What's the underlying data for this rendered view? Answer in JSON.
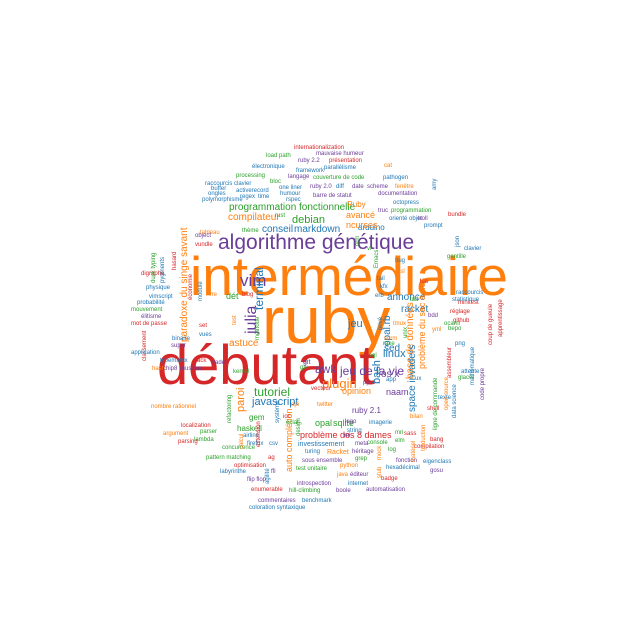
{
  "palette": {
    "orange": "#ff7f0e",
    "red": "#d62728",
    "purple": "#6b3d9a",
    "blue": "#1f77b4",
    "green": "#2ca02c"
  },
  "words": [
    {
      "text": "intermédiaire",
      "color": "#ff7f0e"
    },
    {
      "text": "ruby",
      "color": "#ff7f0e"
    },
    {
      "text": "débutant",
      "color": "#d62728"
    },
    {
      "text": "algorithme génétique",
      "color": "#6b3d9a"
    },
    {
      "text": "vim",
      "color": "#6b3d9a"
    },
    {
      "text": "julia",
      "color": "#6b3d9a"
    },
    {
      "text": "terminal",
      "color": "#1f77b4"
    },
    {
      "text": "programmation fonctionnelle",
      "color": "#2ca02c"
    },
    {
      "text": "compilateur",
      "color": "#ff7f0e"
    },
    {
      "text": "debian",
      "color": "#2ca02c"
    },
    {
      "text": "conseil",
      "color": "#1f77b4"
    },
    {
      "text": "markdown",
      "color": "#1f77b4"
    },
    {
      "text": "arduino",
      "color": "#1f77b4"
    },
    {
      "text": "ncurses",
      "color": "#ff7f0e"
    },
    {
      "text": "avancé",
      "color": "#ff7f0e"
    },
    {
      "text": "Ruby",
      "color": "#ff7f0e"
    },
    {
      "text": "paradoxe du singe savant",
      "color": "#ff7f0e"
    },
    {
      "text": "tutoriel",
      "color": "#2ca02c"
    },
    {
      "text": "javascript",
      "color": "#1f77b4"
    },
    {
      "text": "plugin",
      "color": "#ff7f0e"
    },
    {
      "text": "awk",
      "color": "#6b3d9a"
    },
    {
      "text": "jeu de la vie",
      "color": "#6b3d9a"
    },
    {
      "text": "linux",
      "color": "#1f77b4"
    },
    {
      "text": "annonce",
      "color": "#1f77b4"
    },
    {
      "text": "racket",
      "color": "#1f77b4"
    },
    {
      "text": "jeu",
      "color": "#1f77b4"
    },
    {
      "text": "opal.rb",
      "color": "#1f77b4"
    },
    {
      "text": "problème du sac à dos",
      "color": "#ff7f0e"
    },
    {
      "text": "base de données",
      "color": "#ff7f0e"
    },
    {
      "text": "bash",
      "color": "#1f77b4"
    },
    {
      "text": "sed",
      "color": "#1f77b4"
    },
    {
      "text": "os x",
      "color": "#6b3d9a"
    },
    {
      "text": "space invaders",
      "color": "#1f77b4"
    },
    {
      "text": "naam",
      "color": "#6b3d9a"
    },
    {
      "text": "ruby 2.1",
      "color": "#6b3d9a"
    },
    {
      "text": "problème des 8 dames",
      "color": "#d62728"
    },
    {
      "text": "opal",
      "color": "#2ca02c"
    },
    {
      "text": "sqlite",
      "color": "#2ca02c"
    },
    {
      "text": "opinion",
      "color": "#ff7f0e"
    },
    {
      "text": "auto complétion",
      "color": "#ff7f0e"
    },
    {
      "text": "paroi",
      "color": "#ff7f0e"
    },
    {
      "text": "gem",
      "color": "#2ca02c"
    },
    {
      "text": "haskell",
      "color": "#2ca02c"
    },
    {
      "text": "astuce",
      "color": "#ff7f0e"
    },
    {
      "text": "dét",
      "color": "#2ca02c"
    },
    {
      "text": "internationalization",
      "color": "#d62728"
    },
    {
      "text": "mauvaise humeur",
      "color": "#6b3d9a"
    },
    {
      "text": "load path",
      "color": "#2ca02c"
    },
    {
      "text": "ruby 2.2",
      "color": "#6b3d9a"
    },
    {
      "text": "présentation",
      "color": "#d62728"
    },
    {
      "text": "électronique",
      "color": "#1f77b4"
    },
    {
      "text": "framework",
      "color": "#1f77b4"
    },
    {
      "text": "processing",
      "color": "#2ca02c"
    },
    {
      "text": "couverture de code",
      "color": "#2ca02c"
    },
    {
      "text": "parallélisme",
      "color": "#1f77b4"
    },
    {
      "text": "pathogen",
      "color": "#1f77b4"
    },
    {
      "text": "raccourcis clavier",
      "color": "#1f77b4"
    },
    {
      "text": "langage",
      "color": "#6b3d9a"
    },
    {
      "text": "ruby 2.0",
      "color": "#6b3d9a"
    },
    {
      "text": "date",
      "color": "#6b3d9a"
    },
    {
      "text": "scheme",
      "color": "#6b3d9a"
    },
    {
      "text": "fenêtre",
      "color": "#ff7f0e"
    },
    {
      "text": "polymorphisme",
      "color": "#1f77b4"
    },
    {
      "text": "one liner",
      "color": "#1f77b4"
    },
    {
      "text": "humour",
      "color": "#1f77b4"
    },
    {
      "text": "activerecord",
      "color": "#1f77b4"
    },
    {
      "text": "barre de statut",
      "color": "#6b3d9a"
    },
    {
      "text": "documentation",
      "color": "#6b3d9a"
    },
    {
      "text": "octopress",
      "color": "#1f77b4"
    },
    {
      "text": "orienté objet",
      "color": "#1f77b4"
    },
    {
      "text": "programmation",
      "color": "#2ca02c"
    },
    {
      "text": "prompt",
      "color": "#1f77b4"
    },
    {
      "text": "bundle",
      "color": "#d62728"
    },
    {
      "text": "clavier",
      "color": "#1f77b4"
    },
    {
      "text": "gentille",
      "color": "#2ca02c"
    },
    {
      "text": "json",
      "color": "#1f77b4"
    },
    {
      "text": "rust",
      "color": "#2ca02c"
    },
    {
      "text": "regex",
      "color": "#1f77b4"
    },
    {
      "text": "time",
      "color": "#1f77b4"
    },
    {
      "text": "thème",
      "color": "#2ca02c"
    },
    {
      "text": "duck typing",
      "color": "#2ca02c"
    },
    {
      "text": "digraphe",
      "color": "#d62728"
    },
    {
      "text": "physique",
      "color": "#1f77b4"
    },
    {
      "text": "vimscript",
      "color": "#1f77b4"
    },
    {
      "text": "probabilité",
      "color": "#1f77b4"
    },
    {
      "text": "mouvement",
      "color": "#2ca02c"
    },
    {
      "text": "élitisme",
      "color": "#6b3d9a"
    },
    {
      "text": "mot de passe",
      "color": "#d62728"
    },
    {
      "text": "hash",
      "color": "#ff7f0e"
    },
    {
      "text": "binaire",
      "color": "#1f77b4"
    },
    {
      "text": "classement",
      "color": "#d62728"
    },
    {
      "text": "application",
      "color": "#1f77b4"
    },
    {
      "text": "typematrix",
      "color": "#1f77b4"
    },
    {
      "text": "chip8",
      "color": "#6b3d9a"
    },
    {
      "text": "musique",
      "color": "#6b3d9a"
    },
    {
      "text": "nombre rationnel",
      "color": "#ff7f0e"
    },
    {
      "text": "argument",
      "color": "#ff7f0e"
    },
    {
      "text": "localization",
      "color": "#d62728"
    },
    {
      "text": "parser",
      "color": "#2ca02c"
    },
    {
      "text": "lambda",
      "color": "#2ca02c"
    },
    {
      "text": "pattern matching",
      "color": "#2ca02c"
    },
    {
      "text": "labyrinthe",
      "color": "#1f77b4"
    },
    {
      "text": "optimisation",
      "color": "#d62728"
    },
    {
      "text": "flip flop",
      "color": "#6b3d9a"
    },
    {
      "text": "enumerable",
      "color": "#d62728"
    },
    {
      "text": "concurrence",
      "color": "#2ca02c"
    },
    {
      "text": "airline",
      "color": "#1f77b4"
    },
    {
      "text": "firefox",
      "color": "#1f77b4"
    },
    {
      "text": "refactoring",
      "color": "#2ca02c"
    },
    {
      "text": "vader",
      "color": "#6b3d9a"
    },
    {
      "text": "turing",
      "color": "#1f77b4"
    },
    {
      "text": "investissement",
      "color": "#1f77b4"
    },
    {
      "text": "meta",
      "color": "#6b3d9a"
    },
    {
      "text": "test unitaire",
      "color": "#2ca02c"
    },
    {
      "text": "sous ensemble",
      "color": "#6b3d9a"
    },
    {
      "text": "introspection",
      "color": "#6b3d9a"
    },
    {
      "text": "hill-climbing",
      "color": "#2ca02c"
    },
    {
      "text": "boole",
      "color": "#6b3d9a"
    },
    {
      "text": "commentaires",
      "color": "#6b3d9a"
    },
    {
      "text": "benchmark",
      "color": "#1f77b4"
    },
    {
      "text": "coloration syntaxique",
      "color": "#1f77b4"
    },
    {
      "text": "Racket",
      "color": "#ff7f0e"
    },
    {
      "text": "héritage",
      "color": "#6b3d9a"
    },
    {
      "text": "python",
      "color": "#ff7f0e"
    },
    {
      "text": "java",
      "color": "#ff7f0e"
    },
    {
      "text": "éditeur",
      "color": "#6b3d9a"
    },
    {
      "text": "internet",
      "color": "#1f77b4"
    },
    {
      "text": "automatisation",
      "color": "#6b3d9a"
    },
    {
      "text": "badge",
      "color": "#d62728"
    },
    {
      "text": "fonction",
      "color": "#6b3d9a"
    },
    {
      "text": "hexadécimal",
      "color": "#1f77b4"
    },
    {
      "text": "compilation",
      "color": "#d62728"
    },
    {
      "text": "bang",
      "color": "#d62728"
    },
    {
      "text": "console",
      "color": "#2ca02c"
    },
    {
      "text": "grep",
      "color": "#2ca02c"
    },
    {
      "text": "logo",
      "color": "#6b3d9a"
    },
    {
      "text": "string",
      "color": "#1f77b4"
    },
    {
      "text": "imagerie",
      "color": "#1f77b4"
    },
    {
      "text": "bilan",
      "color": "#ff7f0e"
    },
    {
      "text": "sorm",
      "color": "#ff7f0e"
    },
    {
      "text": "réglage",
      "color": "#d62728"
    },
    {
      "text": "github",
      "color": "#d62728"
    },
    {
      "text": "minitest",
      "color": "#d62728"
    },
    {
      "text": "raccourcis",
      "color": "#1f77b4"
    },
    {
      "text": "statistique",
      "color": "#1f77b4"
    },
    {
      "text": "bepo",
      "color": "#2ca02c"
    },
    {
      "text": "png",
      "color": "#1f77b4"
    },
    {
      "text": "shell",
      "color": "#d62728"
    },
    {
      "text": "texte",
      "color": "#1f77b4"
    },
    {
      "text": "mathématique",
      "color": "#1f77b4"
    },
    {
      "text": "ligne de commande",
      "color": "#2ca02c"
    },
    {
      "text": "code propre",
      "color": "#6b3d9a"
    },
    {
      "text": "coup de gueule",
      "color": "#d62728"
    },
    {
      "text": "apprentissage",
      "color": "#d62728"
    },
    {
      "text": "livre",
      "color": "#ff7f0e"
    },
    {
      "text": "blog",
      "color": "#d62728"
    },
    {
      "text": "kernel",
      "color": "#2ca02c"
    },
    {
      "text": "méthode",
      "color": "#2ca02c"
    },
    {
      "text": "gtk",
      "color": "#2ca02c"
    },
    {
      "text": "erb",
      "color": "#1f77b4"
    },
    {
      "text": "tail",
      "color": "#1f77b4"
    },
    {
      "text": "rake",
      "color": "#2ca02c"
    },
    {
      "text": "truc",
      "color": "#6b3d9a"
    },
    {
      "text": "diff",
      "color": "#1f77b4"
    },
    {
      "text": "cat",
      "color": "#ff7f0e"
    },
    {
      "text": "bloc",
      "color": "#2ca02c"
    },
    {
      "text": "rspec",
      "color": "#1f77b4"
    },
    {
      "text": "ongles",
      "color": "#1f77b4"
    },
    {
      "text": "buffer",
      "color": "#1f77b4"
    },
    {
      "text": "twitter",
      "color": "#ff7f0e"
    },
    {
      "text": "vecteur",
      "color": "#d62728"
    },
    {
      "text": "pygments",
      "color": "#1f77b4"
    },
    {
      "text": "hasard",
      "color": "#d62728"
    },
    {
      "text": "tableau",
      "color": "#ff7f0e"
    },
    {
      "text": "vundle",
      "color": "#d62728"
    },
    {
      "text": "object",
      "color": "#6b3d9a"
    },
    {
      "text": "super",
      "color": "#6b3d9a"
    },
    {
      "text": "vues",
      "color": "#1f77b4"
    },
    {
      "text": "module",
      "color": "#1f77b4"
    },
    {
      "text": "set",
      "color": "#d62728"
    },
    {
      "text": "ack",
      "color": "#d62728"
    },
    {
      "text": "csv",
      "color": "#1f77b4"
    },
    {
      "text": "ffi",
      "color": "#6b3d9a"
    },
    {
      "text": "git",
      "color": "#6b3d9a"
    },
    {
      "text": "api",
      "color": "#ff7f0e"
    },
    {
      "text": "extension",
      "color": "#d62728"
    },
    {
      "text": "parsing",
      "color": "#d62728"
    },
    {
      "text": "ag",
      "color": "#d62728"
    },
    {
      "text": "ioc",
      "color": "#d62728"
    },
    {
      "text": "test",
      "color": "#ff7f0e"
    },
    {
      "text": "sql",
      "color": "#2ca02c"
    },
    {
      "text": "orm",
      "color": "#2ca02c"
    },
    {
      "text": "elm",
      "color": "#2ca02c"
    },
    {
      "text": "mri",
      "color": "#2ca02c"
    },
    {
      "text": "log",
      "color": "#2ca02c"
    },
    {
      "text": "ux",
      "color": "#1f77b4"
    },
    {
      "text": "app",
      "color": "#1f77b4"
    },
    {
      "text": "sass",
      "color": "#d62728"
    },
    {
      "text": "lua",
      "color": "#d62728"
    },
    {
      "text": "unix",
      "color": "#2ca02c"
    },
    {
      "text": "privé",
      "color": "#1f77b4"
    },
    {
      "text": "bug",
      "color": "#1f77b4"
    },
    {
      "text": "tmux",
      "color": "#ff7f0e"
    },
    {
      "text": "ocaml",
      "color": "#2ca02c"
    },
    {
      "text": "yml",
      "color": "#ff7f0e"
    },
    {
      "text": "bdd",
      "color": "#6b3d9a"
    },
    {
      "text": "dsl",
      "color": "#ff7f0e"
    },
    {
      "text": "amy",
      "color": "#1f77b4"
    },
    {
      "text": "troll",
      "color": "#6b3d9a"
    },
    {
      "text": "tdd",
      "color": "#2ca02c"
    },
    {
      "text": "Emacs",
      "color": "#2ca02c"
    },
    {
      "text": "kfx",
      "color": "#1f77b4"
    },
    {
      "text": "vi",
      "color": "#2ca02c"
    },
    {
      "text": "pp",
      "color": "#6b3d9a"
    },
    {
      "text": "économie",
      "color": "#d62728"
    },
    {
      "text": "assembleur",
      "color": "#d62728"
    },
    {
      "text": "glacer",
      "color": "#2ca02c"
    },
    {
      "text": "attente",
      "color": "#1f77b4"
    },
    {
      "text": "open source",
      "color": "#ff7f0e"
    },
    {
      "text": "data science",
      "color": "#1f77b4"
    },
    {
      "text": "eigenclass",
      "color": "#1f77b4"
    },
    {
      "text": "traduction",
      "color": "#ff7f0e"
    },
    {
      "text": "matériel",
      "color": "#ff7f0e"
    },
    {
      "text": "calcul",
      "color": "#ff7f0e"
    },
    {
      "text": "design",
      "color": "#2ca02c"
    },
    {
      "text": "agilité",
      "color": "#1f77b4"
    },
    {
      "text": "éclat",
      "color": "#2ca02c"
    },
    {
      "text": "système",
      "color": "#1f77b4"
    },
    {
      "text": "mock",
      "color": "#ff7f0e"
    },
    {
      "text": "stub",
      "color": "#ff7f0e"
    },
    {
      "text": "gosu",
      "color": "#6b3d9a"
    },
    {
      "text": "mi",
      "color": "#6b3d9a"
    }
  ]
}
